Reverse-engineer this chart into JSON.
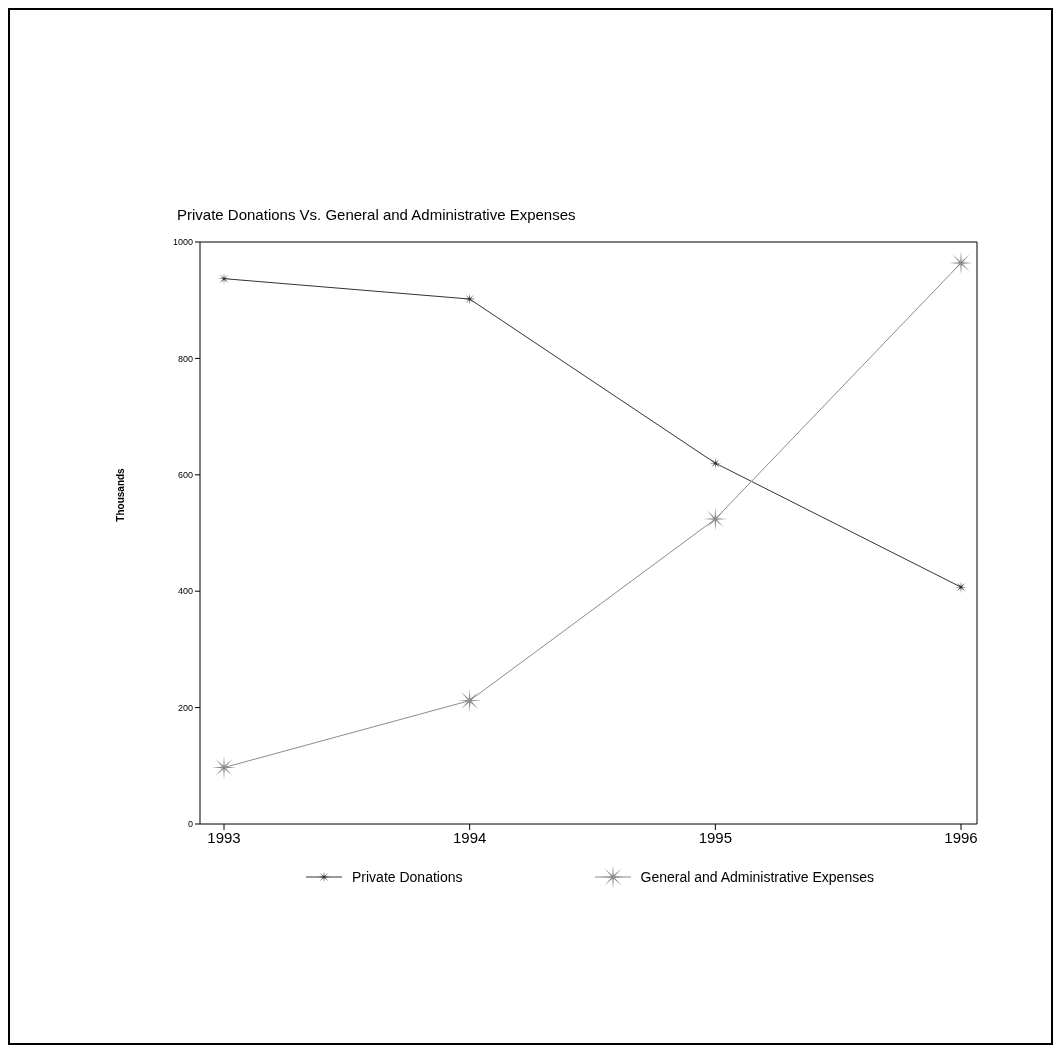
{
  "chart_data": {
    "type": "line",
    "title": "Private Donations Vs. General and Administrative Expenses",
    "ylabel": "Thousands",
    "categories": [
      "1993",
      "1994",
      "1995",
      "1996"
    ],
    "series": [
      {
        "name": "Private Donations",
        "color": "#333333",
        "values": [
          937,
          902,
          620,
          407
        ]
      },
      {
        "name": "General and Administrative Expenses",
        "color": "#8c8c8c",
        "values": [
          97,
          212,
          524,
          964
        ]
      }
    ],
    "ylim": [
      0,
      1000
    ],
    "yticks": [
      0,
      200,
      400,
      600,
      800,
      1000
    ],
    "grid": false,
    "legend": "bottom",
    "marker": "star",
    "line_style": "solid"
  }
}
